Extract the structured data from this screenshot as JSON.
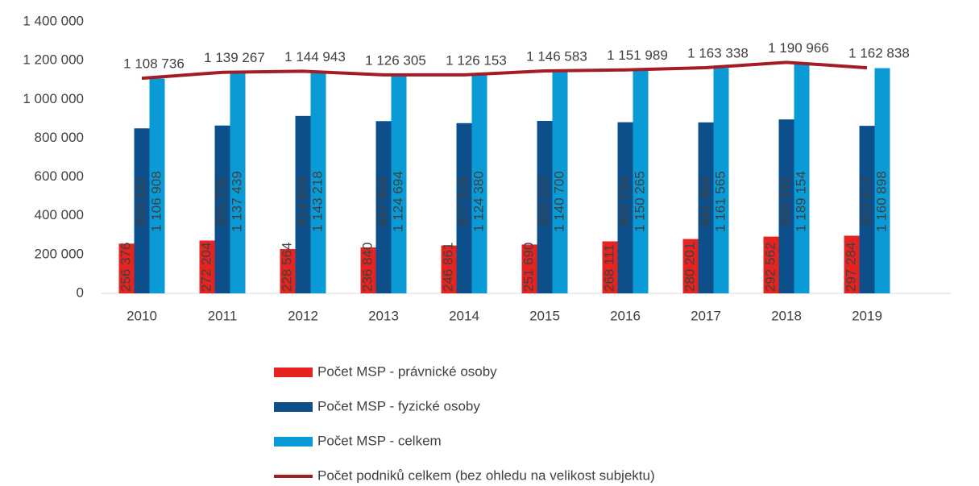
{
  "chart_data": {
    "type": "bar",
    "categories": [
      "2010",
      "2011",
      "2012",
      "2013",
      "2014",
      "2015",
      "2016",
      "2017",
      "2018",
      "2019"
    ],
    "ylim": [
      0,
      1400000
    ],
    "yticks": [
      0,
      {
        "value": 200000,
        "label": "200 000"
      },
      {
        "value": 400000,
        "label": "400 000"
      },
      {
        "value": 600000,
        "label": "600 000"
      },
      {
        "value": 800000,
        "label": "800 000"
      },
      {
        "value": 1000000,
        "label": "1 000 000"
      },
      {
        "value": 1200000,
        "label": "1 200 000"
      },
      {
        "value": 1400000,
        "label": "1 400 000"
      }
    ],
    "series": [
      {
        "name": "Počet MSP - právnické osoby",
        "color": "#e52421",
        "values": [
          256376,
          272204,
          228564,
          236840,
          246861,
          251690,
          268111,
          280201,
          292562,
          297284
        ],
        "value_labels": [
          "256 376",
          "272 204",
          "228 564",
          "236 840",
          "246 861",
          "251 690",
          "268 111",
          "280 201",
          "292 562",
          "297 284"
        ]
      },
      {
        "name": "Počet MSP - fyzické osoby",
        "color": "#0d4f8b",
        "values": [
          850532,
          865235,
          914654,
          887854,
          877519,
          889010,
          882154,
          881364,
          896592,
          863614
        ],
        "value_labels": [
          "850 532",
          "865 235",
          "914 654",
          "887 854",
          "877 519",
          "889 010",
          "882 154",
          "881 364",
          "896 592",
          "863 614"
        ]
      },
      {
        "name": "Počet MSP - celkem",
        "color": "#0a9ad6",
        "values": [
          1106908,
          1137439,
          1143218,
          1124694,
          1124380,
          1140700,
          1150265,
          1161565,
          1189154,
          1160898
        ],
        "value_labels": [
          "1 106 908",
          "1 137 439",
          "1 143 218",
          "1 124 694",
          "1 124 380",
          "1 140 700",
          "1 150 265",
          "1 161 565",
          "1 189 154",
          "1 160 898"
        ]
      },
      {
        "name": "Počet podniků celkem (bez ohledu na velikost subjektu)",
        "color": "#a51d24",
        "type": "line",
        "values": [
          1108736,
          1139267,
          1144943,
          1126305,
          1126153,
          1146583,
          1151989,
          1163338,
          1190966,
          1162838
        ],
        "value_labels": [
          "1 108 736",
          "1 139 267",
          "1 144 943",
          "1 126 305",
          "1 126 153",
          "1 146 583",
          "1 151 989",
          "1 163 338",
          "1 190 966",
          "1 162 838"
        ]
      }
    ]
  }
}
